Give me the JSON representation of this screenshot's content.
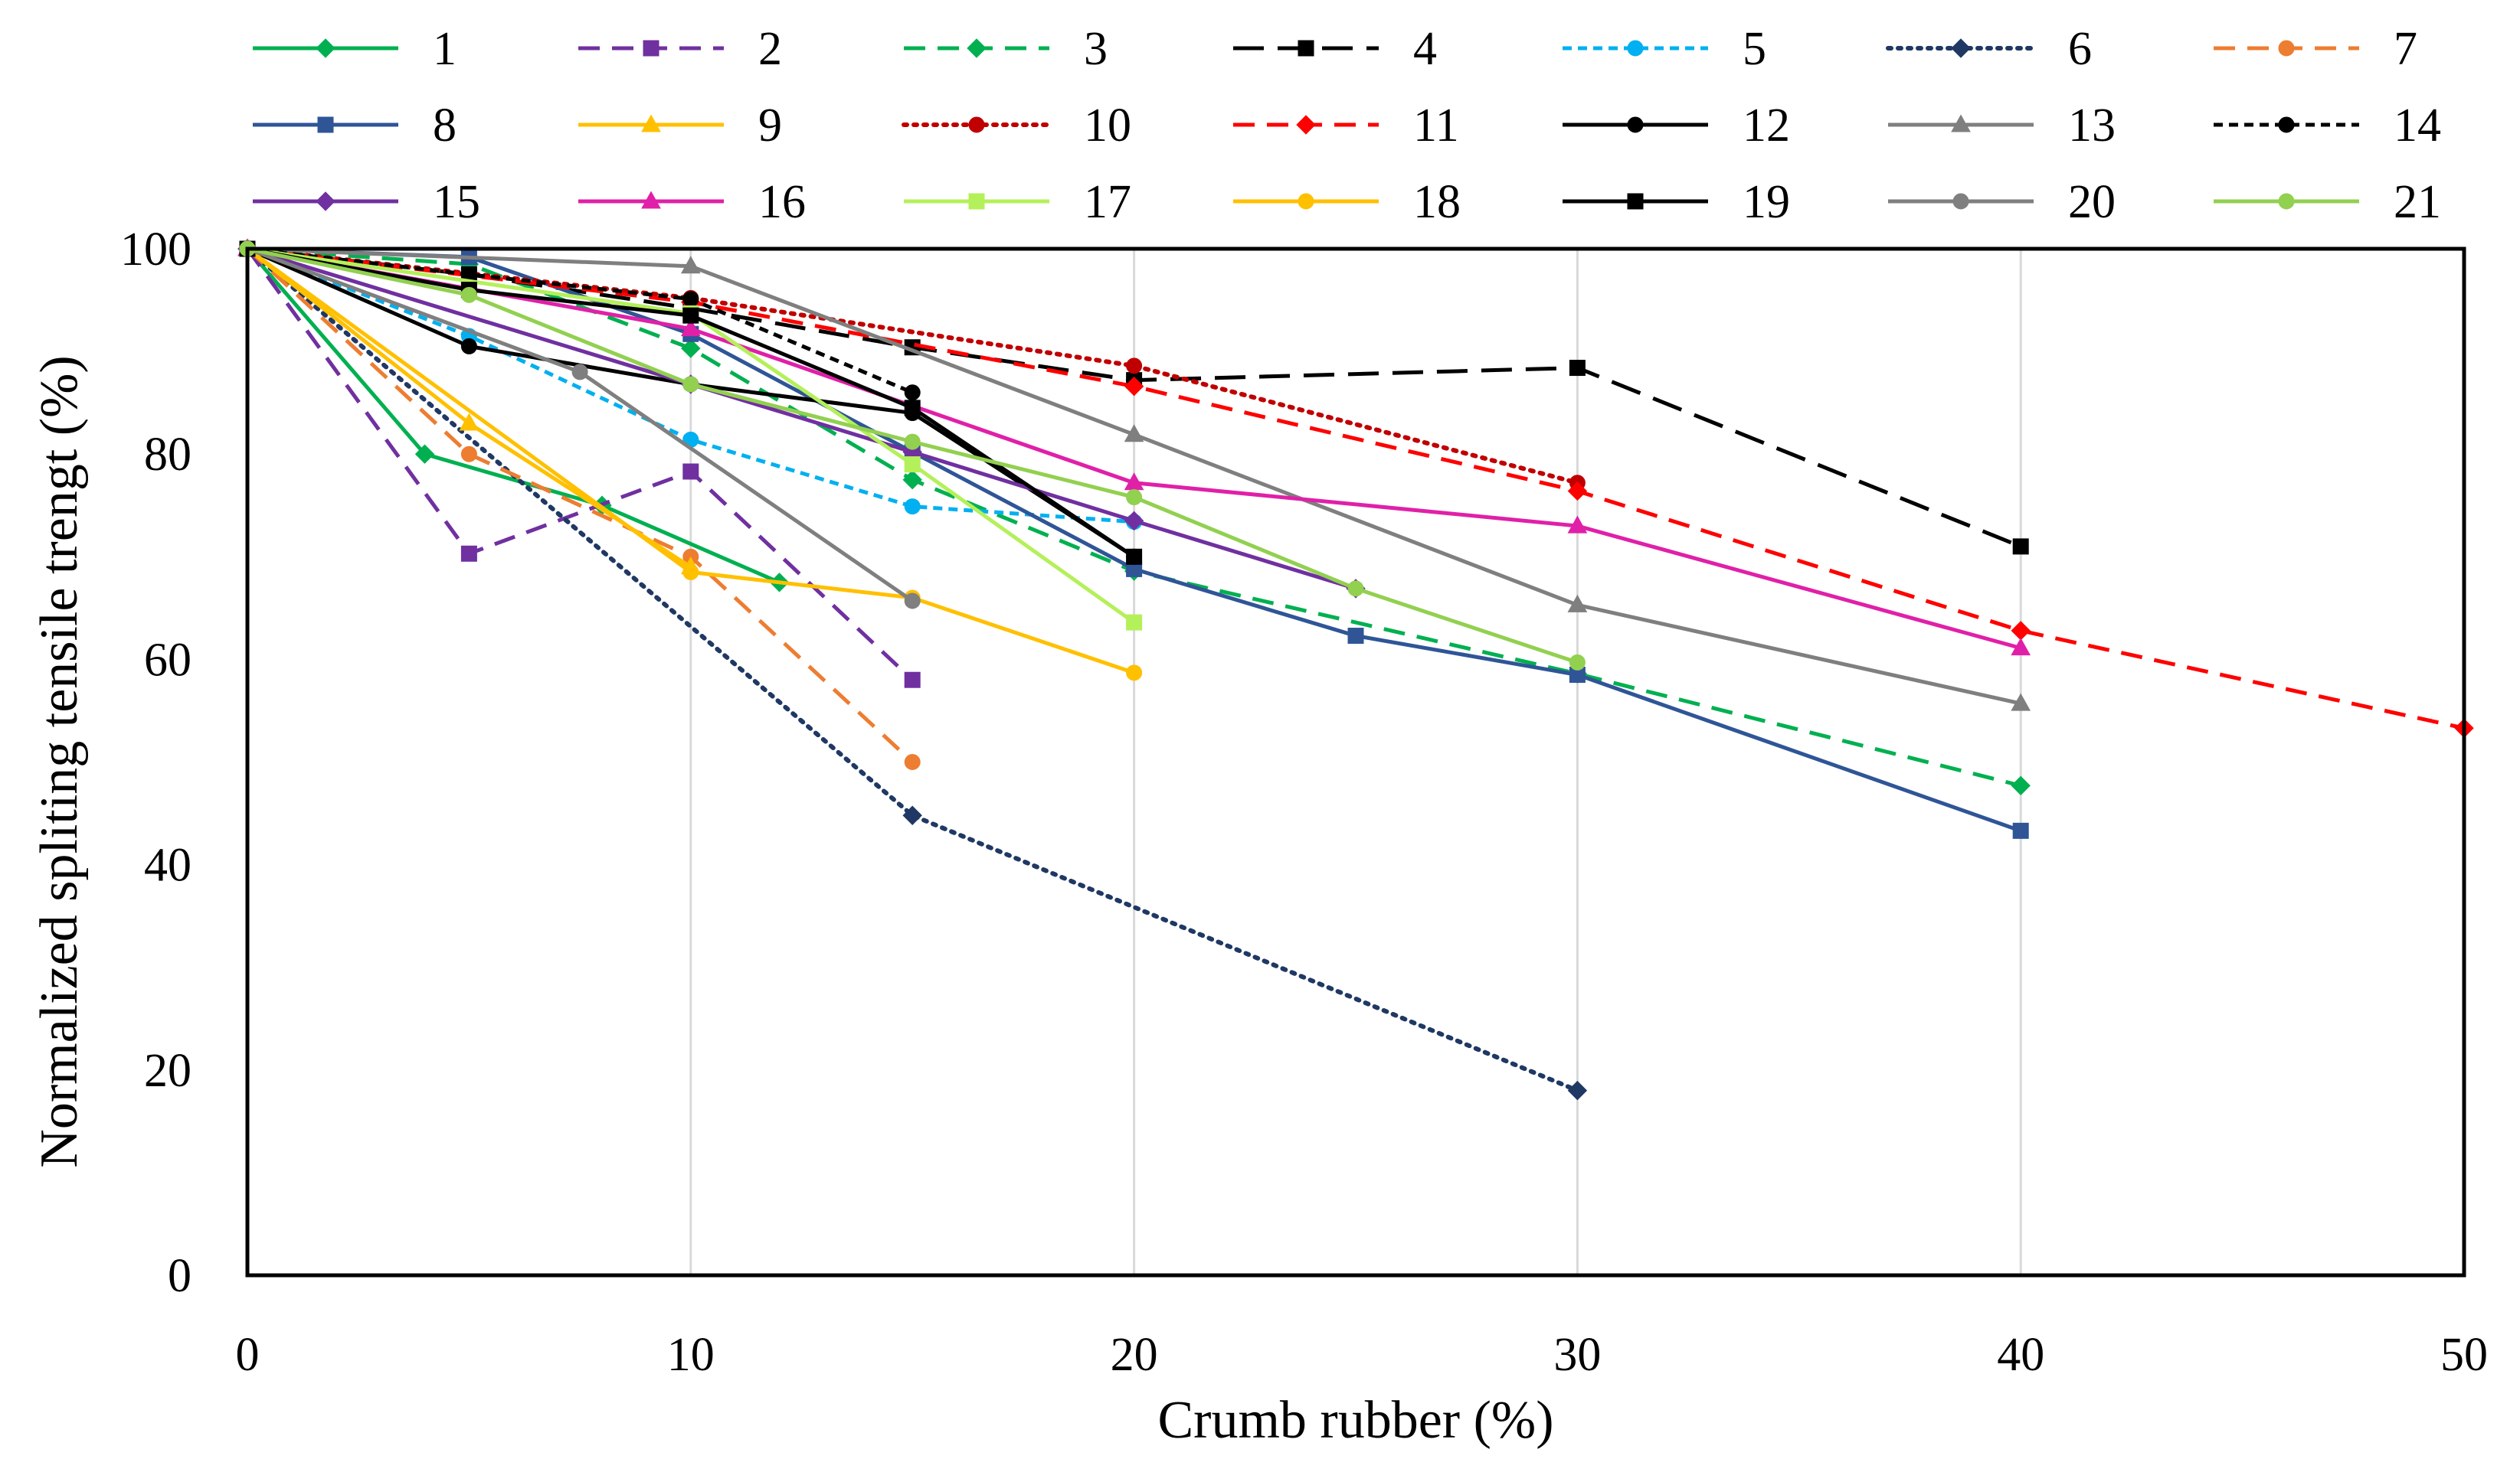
{
  "chart_data": {
    "type": "line",
    "title": "",
    "xlabel": "Crumb rubber (%)",
    "ylabel": "Normalized spliting tensile trengt (%)",
    "xlim": [
      0,
      50
    ],
    "ylim": [
      0,
      100
    ],
    "x_ticks": [
      "0",
      "10",
      "20",
      "30",
      "40",
      "50"
    ],
    "y_ticks": [
      "0",
      "20",
      "40",
      "60",
      "80",
      "100"
    ],
    "grid": "vertical",
    "legend_position": "top",
    "series": [
      {
        "name": "1",
        "color": "#00b050",
        "dash": "solid",
        "marker": "diamond",
        "x": [
          0,
          4,
          8,
          12
        ],
        "y": [
          100,
          80,
          75,
          67.5
        ]
      },
      {
        "name": "2",
        "color": "#7030a0",
        "dash": "dash",
        "marker": "square",
        "x": [
          0,
          5,
          10,
          15
        ],
        "y": [
          100,
          70.3,
          78.3,
          58
        ]
      },
      {
        "name": "3",
        "color": "#00b050",
        "dash": "dash",
        "marker": "diamond",
        "x": [
          0,
          5,
          10,
          15,
          20,
          30,
          40
        ],
        "y": [
          100,
          98.5,
          90.3,
          77.5,
          68.6,
          58.6,
          47.7
        ]
      },
      {
        "name": "4",
        "color": "#000000",
        "dash": "longdash",
        "marker": "square",
        "x": [
          0,
          5,
          10,
          15,
          20,
          30,
          40
        ],
        "y": [
          100,
          97.5,
          94.2,
          90.4,
          87.2,
          88.4,
          71
        ]
      },
      {
        "name": "5",
        "color": "#00b0f0",
        "dash": "shortdash",
        "marker": "circle",
        "x": [
          0,
          5,
          10,
          15,
          20
        ],
        "y": [
          100,
          91.5,
          81.4,
          74.9,
          73.4
        ]
      },
      {
        "name": "6",
        "color": "#1f3864",
        "dash": "dot",
        "marker": "diamond",
        "x": [
          0,
          15,
          30
        ],
        "y": [
          100,
          44.8,
          18
        ]
      },
      {
        "name": "7",
        "color": "#ed7d31",
        "dash": "dash",
        "marker": "circle",
        "x": [
          0,
          5,
          10,
          15
        ],
        "y": [
          100,
          80,
          70,
          50
        ]
      },
      {
        "name": "8",
        "color": "#2f5597",
        "dash": "solid",
        "marker": "square",
        "x": [
          0,
          5,
          10,
          15,
          20,
          25,
          30,
          40
        ],
        "y": [
          100,
          99.2,
          91.7,
          80.2,
          68.8,
          62.3,
          58.5,
          43.3
        ]
      },
      {
        "name": "9",
        "color": "#ffc000",
        "dash": "solid",
        "marker": "triangle",
        "x": [
          0,
          5,
          10
        ],
        "y": [
          100,
          83,
          69
        ]
      },
      {
        "name": "10",
        "color": "#c00000",
        "dash": "dot",
        "marker": "circle",
        "x": [
          0,
          10,
          20,
          30
        ],
        "y": [
          100,
          95.2,
          88.6,
          77.2
        ]
      },
      {
        "name": "11",
        "color": "#ff0000",
        "dash": "dash",
        "marker": "diamond",
        "x": [
          0,
          10,
          20,
          30,
          40,
          50
        ],
        "y": [
          100,
          94.8,
          86.6,
          76.4,
          62.8,
          53.3
        ]
      },
      {
        "name": "12",
        "color": "#000000",
        "dash": "solid",
        "marker": "circle",
        "x": [
          0,
          5,
          10,
          15,
          20
        ],
        "y": [
          100,
          90.5,
          86.8,
          84,
          70
        ]
      },
      {
        "name": "13",
        "color": "#7f7f7f",
        "dash": "solid",
        "marker": "triangle",
        "x": [
          0,
          10,
          20,
          30,
          40
        ],
        "y": [
          100,
          98.3,
          81.9,
          65.3,
          55.7
        ]
      },
      {
        "name": "14",
        "color": "#000000",
        "dash": "shortdash",
        "marker": "circle",
        "x": [
          0,
          5,
          10,
          15
        ],
        "y": [
          100,
          97.5,
          95.1,
          86
        ]
      },
      {
        "name": "15",
        "color": "#7030a0",
        "dash": "solid",
        "marker": "diamond",
        "x": [
          0,
          10,
          15,
          20,
          25
        ],
        "y": [
          100,
          86.8,
          80.2,
          73.5,
          66.9
        ]
      },
      {
        "name": "16",
        "color": "#e020a8",
        "dash": "solid",
        "marker": "triangle",
        "x": [
          0,
          10,
          20,
          30,
          40
        ],
        "y": [
          100,
          92.2,
          77.2,
          73,
          61.1
        ]
      },
      {
        "name": "17",
        "color": "#b4f05a",
        "dash": "solid",
        "marker": "square",
        "x": [
          0,
          10,
          15,
          20
        ],
        "y": [
          100,
          93.7,
          79,
          63.6
        ]
      },
      {
        "name": "18",
        "color": "#ffc000",
        "dash": "solid",
        "marker": "circle",
        "x": [
          0,
          10,
          15,
          20
        ],
        "y": [
          100,
          68.5,
          66,
          58.7
        ]
      },
      {
        "name": "19",
        "color": "#000000",
        "dash": "solid",
        "marker": "square",
        "x": [
          0,
          5,
          10,
          15,
          20
        ],
        "y": [
          100,
          96,
          93.5,
          84.5,
          70
        ]
      },
      {
        "name": "20",
        "color": "#7f7f7f",
        "dash": "solid",
        "marker": "circle",
        "x": [
          0,
          7.5,
          15
        ],
        "y": [
          100,
          88,
          65.7
        ]
      },
      {
        "name": "21",
        "color": "#92d050",
        "dash": "solid",
        "marker": "circle",
        "x": [
          0,
          5,
          10,
          15,
          20,
          25,
          30
        ],
        "y": [
          100,
          95.5,
          86.8,
          81.2,
          75.8,
          66.9,
          59.7
        ]
      }
    ]
  }
}
